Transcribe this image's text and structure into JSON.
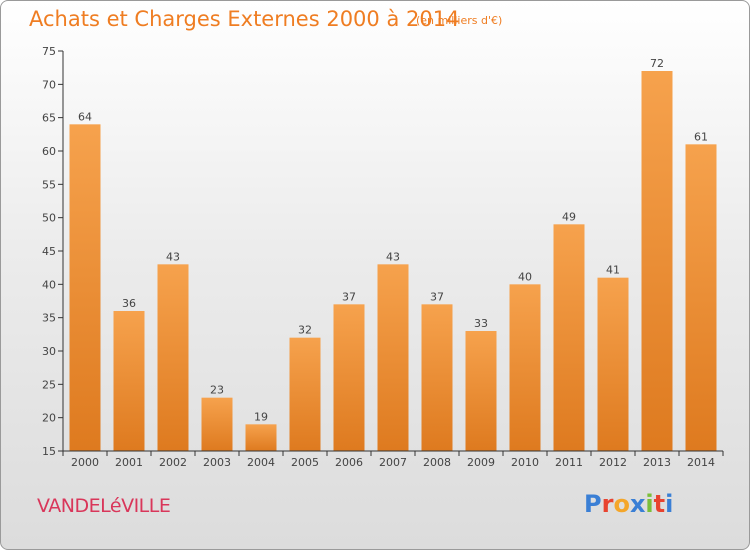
{
  "header": {
    "title": "Achats et Charges Externes 2000 à 2014",
    "subtitle": "(en milliers d'€)"
  },
  "footer": {
    "commune": "VANDELéVILLE",
    "logo_letters": [
      "P",
      "r",
      "o",
      "x",
      "i",
      "t",
      "i"
    ],
    "logo_colors": [
      "#3a7fd5",
      "#e8432f",
      "#f4a62a",
      "#3a7fd5",
      "#7bbf3a",
      "#e8432f",
      "#3a7fd5"
    ]
  },
  "colors": {
    "bar_light": "#f6a24d",
    "bar_dark": "#de7a1f",
    "text": "#444444",
    "axis": "#333333"
  },
  "chart_data": {
    "type": "bar",
    "categories": [
      "2000",
      "2001",
      "2002",
      "2003",
      "2004",
      "2005",
      "2006",
      "2007",
      "2008",
      "2009",
      "2010",
      "2011",
      "2012",
      "2013",
      "2014"
    ],
    "values": [
      64,
      36,
      43,
      23,
      19,
      32,
      37,
      43,
      37,
      33,
      40,
      49,
      41,
      72,
      61
    ],
    "title": "Achats et Charges Externes 2000 à 2014",
    "subtitle": "(en milliers d'€)",
    "ylim": [
      15,
      75
    ],
    "yticks": [
      15,
      20,
      25,
      30,
      35,
      40,
      45,
      50,
      55,
      60,
      65,
      70,
      75
    ],
    "grid": false,
    "data_labels": true
  }
}
